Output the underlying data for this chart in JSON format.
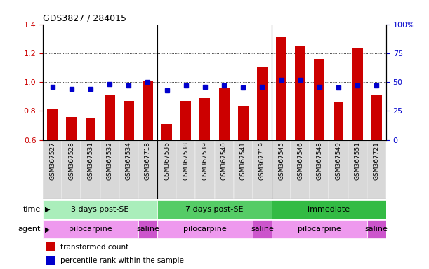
{
  "title": "GDS3827 / 284015",
  "samples": [
    "GSM367527",
    "GSM367528",
    "GSM367531",
    "GSM367532",
    "GSM367534",
    "GSM367718",
    "GSM367536",
    "GSM367538",
    "GSM367539",
    "GSM367540",
    "GSM367541",
    "GSM367719",
    "GSM367545",
    "GSM367546",
    "GSM367548",
    "GSM367549",
    "GSM367551",
    "GSM367721"
  ],
  "transformed_count": [
    0.81,
    0.76,
    0.75,
    0.91,
    0.87,
    1.01,
    0.71,
    0.87,
    0.89,
    0.96,
    0.83,
    1.1,
    1.31,
    1.25,
    1.16,
    0.86,
    1.24,
    0.91
  ],
  "percentile_rank_pct": [
    46,
    44,
    44,
    48,
    47,
    50,
    43,
    47,
    46,
    47,
    45,
    46,
    52,
    52,
    46,
    45,
    47,
    47
  ],
  "ylim_left": [
    0.6,
    1.4
  ],
  "ylim_right": [
    0,
    100
  ],
  "bar_color": "#cc0000",
  "dot_color": "#0000cc",
  "yticks_left": [
    0.6,
    0.8,
    1.0,
    1.2,
    1.4
  ],
  "yticks_right": [
    0,
    25,
    50,
    75,
    100
  ],
  "time_groups": [
    {
      "label": "3 days post-SE",
      "start": 0,
      "end": 5,
      "color": "#aaeebb"
    },
    {
      "label": "7 days post-SE",
      "start": 6,
      "end": 11,
      "color": "#55cc66"
    },
    {
      "label": "immediate",
      "start": 12,
      "end": 17,
      "color": "#33bb44"
    }
  ],
  "agent_groups": [
    {
      "label": "pilocarpine",
      "start": 0,
      "end": 4,
      "color": "#ee99ee"
    },
    {
      "label": "saline",
      "start": 5,
      "end": 5,
      "color": "#cc55cc"
    },
    {
      "label": "pilocarpine",
      "start": 6,
      "end": 10,
      "color": "#ee99ee"
    },
    {
      "label": "saline",
      "start": 11,
      "end": 11,
      "color": "#cc55cc"
    },
    {
      "label": "pilocarpine",
      "start": 12,
      "end": 16,
      "color": "#ee99ee"
    },
    {
      "label": "saline",
      "start": 17,
      "end": 17,
      "color": "#cc55cc"
    }
  ],
  "legend_bar_label": "transformed count",
  "legend_dot_label": "percentile rank within the sample",
  "time_label": "time",
  "agent_label": "agent",
  "bar_width": 0.55,
  "bg_color_odd": "#e8e8e8",
  "bg_color_even": "#d0d0d0",
  "sep_color": "#888888"
}
